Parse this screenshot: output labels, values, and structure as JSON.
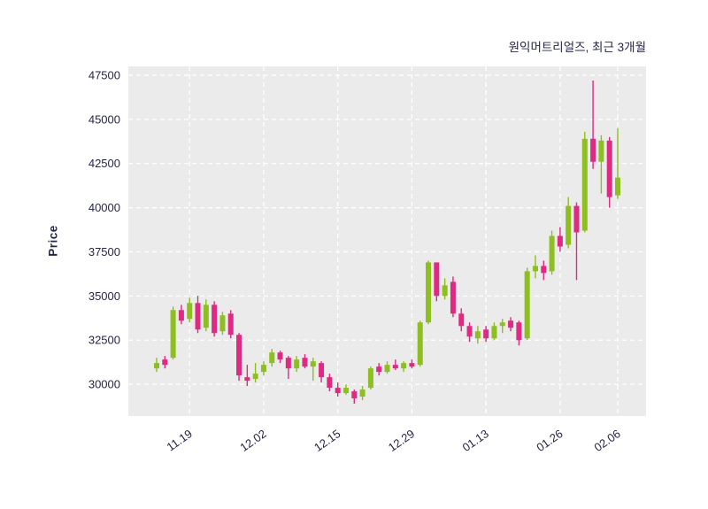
{
  "chart_data": {
    "type": "candlestick",
    "title": "원익머트리얼즈, 최근 3개월",
    "ylabel": "Price",
    "y_ticks": [
      30000,
      32500,
      35000,
      37500,
      40000,
      42500,
      45000,
      47500
    ],
    "ylim": [
      28200,
      48000
    ],
    "x_tick_labels": [
      "11.19",
      "12.02",
      "12.15",
      "12.29",
      "01.13",
      "01.26",
      "02.06"
    ],
    "x_tick_indices": [
      4,
      13,
      22,
      31,
      40,
      49,
      56
    ],
    "legend": "none",
    "grid": "dashed-white",
    "colors": {
      "up": "#8cbf1f",
      "down": "#df2a83",
      "plot_background": "#ebebeb",
      "page_background": "#ffffff",
      "grid_line": "#ffffff",
      "text": "#262647"
    },
    "ohlc": [
      [
        30900,
        31500,
        30700,
        31200
      ],
      [
        31400,
        31600,
        30900,
        31100
      ],
      [
        31500,
        34400,
        31400,
        34200
      ],
      [
        34200,
        34500,
        33400,
        33600
      ],
      [
        33700,
        34900,
        33500,
        34600
      ],
      [
        34600,
        35000,
        32900,
        33100
      ],
      [
        33200,
        34800,
        33000,
        34500
      ],
      [
        34500,
        34700,
        32700,
        32900
      ],
      [
        33000,
        34100,
        32800,
        33900
      ],
      [
        34000,
        34200,
        32600,
        32800
      ],
      [
        32800,
        32900,
        30200,
        30500
      ],
      [
        30400,
        31100,
        29900,
        30200
      ],
      [
        30300,
        31200,
        30100,
        30600
      ],
      [
        30700,
        31300,
        30500,
        31100
      ],
      [
        31200,
        32000,
        31000,
        31800
      ],
      [
        31800,
        31900,
        31200,
        31400
      ],
      [
        31500,
        31600,
        30300,
        30900
      ],
      [
        30900,
        31600,
        30700,
        31400
      ],
      [
        31500,
        31700,
        30900,
        31000
      ],
      [
        31000,
        31500,
        30200,
        31300
      ],
      [
        31200,
        31300,
        30100,
        30400
      ],
      [
        30400,
        30600,
        29600,
        29800
      ],
      [
        29800,
        30100,
        29300,
        29500
      ],
      [
        29500,
        30000,
        29400,
        29800
      ],
      [
        29600,
        29700,
        28900,
        29200
      ],
      [
        29300,
        29900,
        29100,
        29700
      ],
      [
        29800,
        31000,
        29700,
        30900
      ],
      [
        31000,
        31200,
        30500,
        30700
      ],
      [
        30700,
        31300,
        30600,
        31100
      ],
      [
        31100,
        31400,
        30800,
        30900
      ],
      [
        30900,
        31300,
        30700,
        31200
      ],
      [
        31200,
        31400,
        30900,
        31000
      ],
      [
        31100,
        33600,
        31000,
        33500
      ],
      [
        33500,
        37000,
        33400,
        36900
      ],
      [
        36900,
        36900,
        34700,
        35000
      ],
      [
        35000,
        36000,
        34800,
        35600
      ],
      [
        35800,
        36100,
        33800,
        34000
      ],
      [
        34000,
        34300,
        33000,
        33300
      ],
      [
        33300,
        33500,
        32400,
        32700
      ],
      [
        32600,
        33300,
        32300,
        33000
      ],
      [
        33100,
        33300,
        32400,
        32600
      ],
      [
        32600,
        33500,
        32500,
        33300
      ],
      [
        33300,
        33700,
        32900,
        33500
      ],
      [
        33600,
        33800,
        33000,
        33200
      ],
      [
        33500,
        33600,
        32200,
        32500
      ],
      [
        32600,
        36600,
        32500,
        36400
      ],
      [
        36400,
        37300,
        36000,
        36700
      ],
      [
        36700,
        37000,
        35900,
        36300
      ],
      [
        36400,
        38700,
        36200,
        38400
      ],
      [
        38400,
        38900,
        37500,
        37800
      ],
      [
        37900,
        40600,
        37700,
        40100
      ],
      [
        40100,
        40300,
        35900,
        38600
      ],
      [
        38700,
        44300,
        38600,
        43900
      ],
      [
        43900,
        47200,
        42200,
        42600
      ],
      [
        42600,
        44100,
        40800,
        43800
      ],
      [
        43800,
        44000,
        40000,
        40600
      ],
      [
        40700,
        44500,
        40500,
        41700
      ]
    ]
  }
}
